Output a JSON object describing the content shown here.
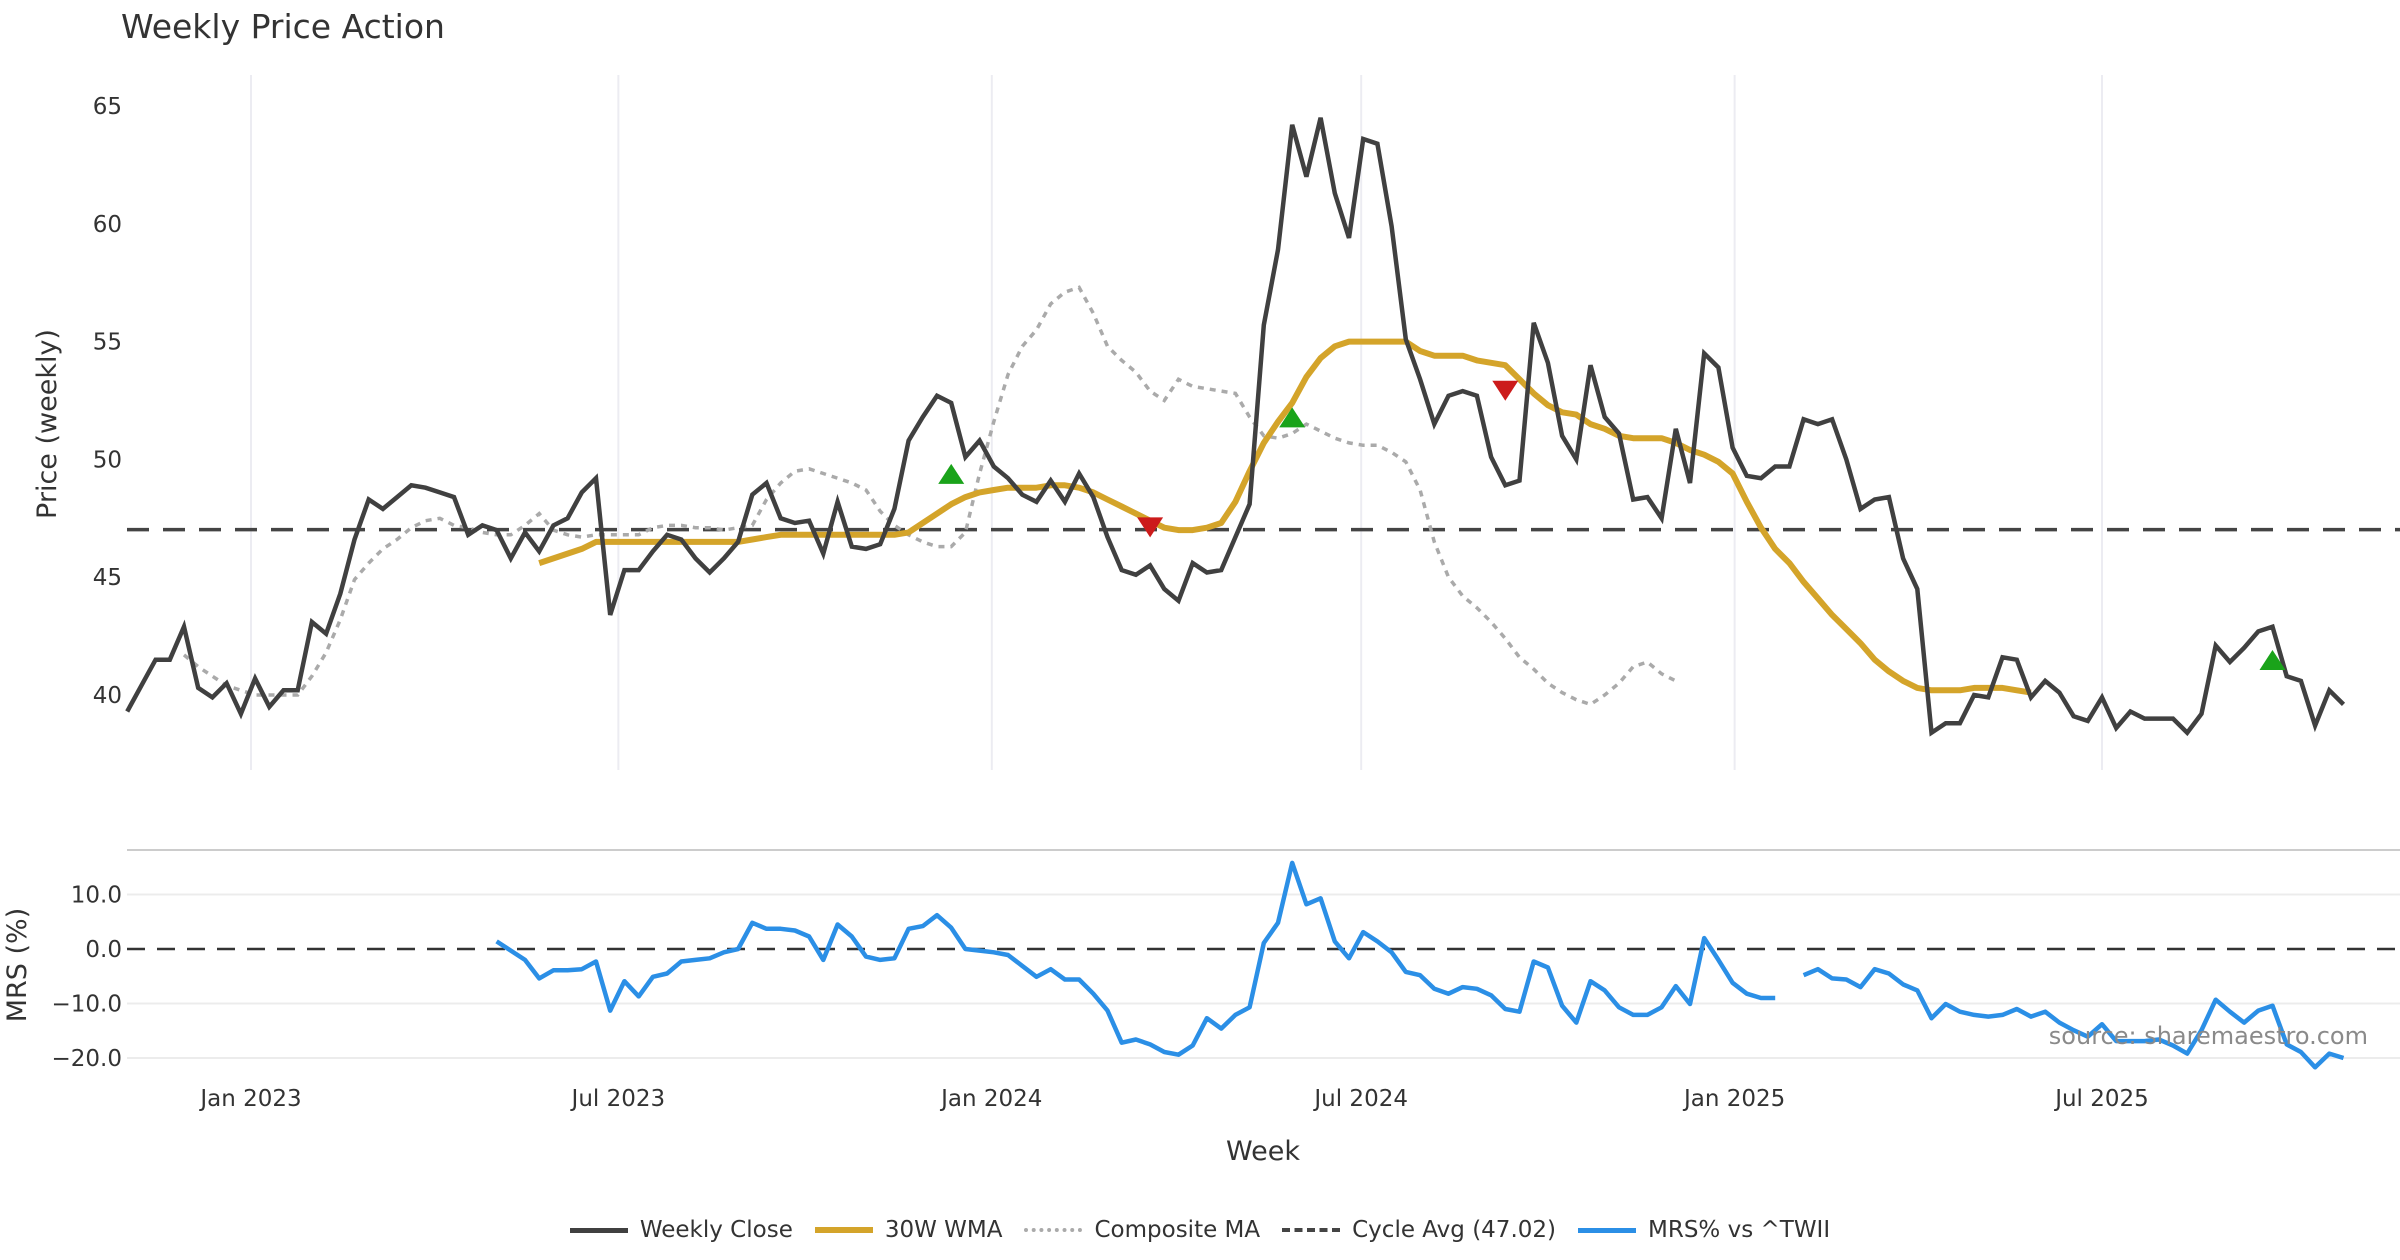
{
  "chart_data": [
    {
      "type": "line",
      "title": "Weekly Price Action",
      "xlabel": "Week",
      "ylabel": "Price (weekly)",
      "ylim": [
        36.5,
        66.5
      ],
      "yticks": [
        "40",
        "45",
        "50",
        "55",
        "60",
        "65"
      ],
      "ytick_values": [
        40,
        45,
        50,
        55,
        60,
        65
      ],
      "xticks": [
        "Jan 2023",
        "Jul 2023",
        "Jan 2024",
        "Jul 2024",
        "Jan 2025",
        "Jul 2025"
      ],
      "xtick_dates": [
        "2023-01-01",
        "2023-07-01",
        "2024-01-01",
        "2024-07-01",
        "2025-01-01",
        "2025-07-01"
      ],
      "x_start": "2022-11-01",
      "x_step_days": 7,
      "grid": true,
      "legend_position": "bottom-center",
      "series": [
        {
          "name": "Weekly Close",
          "color": "#404040",
          "start_index": 0,
          "values": [
            39.3,
            40.4,
            41.5,
            41.5,
            42.9,
            40.3,
            39.9,
            40.5,
            39.2,
            40.7,
            39.5,
            40.2,
            40.2,
            43.1,
            42.6,
            44.3,
            46.6,
            48.3,
            47.9,
            48.4,
            48.9,
            48.8,
            48.6,
            48.4,
            46.8,
            47.2,
            47.0,
            45.8,
            46.9,
            46.1,
            47.2,
            47.5,
            48.6,
            49.2,
            43.4,
            45.3,
            45.3,
            46.1,
            46.8,
            46.6,
            45.8,
            45.2,
            45.8,
            46.5,
            48.5,
            49.0,
            47.5,
            47.3,
            47.4,
            46.0,
            48.2,
            46.3,
            46.2,
            46.4,
            47.9,
            50.8,
            51.8,
            52.7,
            52.4,
            50.1,
            50.8,
            49.7,
            49.2,
            48.5,
            48.2,
            49.1,
            48.2,
            49.4,
            48.4,
            46.7,
            45.3,
            45.1,
            45.5,
            44.5,
            44.0,
            45.6,
            45.2,
            45.3,
            46.7,
            48.1,
            55.7,
            58.9,
            64.2,
            62.0,
            64.5,
            61.3,
            59.4,
            63.6,
            63.4,
            59.9,
            55.1,
            53.4,
            51.5,
            52.7,
            52.9,
            52.7,
            50.1,
            48.9,
            49.1,
            55.8,
            54.1,
            51.0,
            50.0,
            54.0,
            51.8,
            51.1,
            48.3,
            48.4,
            47.5,
            51.3,
            49.0,
            54.5,
            53.9,
            50.5,
            49.3,
            49.2,
            49.7,
            49.7,
            51.7,
            51.5,
            51.7,
            50.0,
            47.9,
            48.3,
            48.4,
            45.8,
            44.5,
            38.4,
            38.8,
            38.8,
            40.0,
            39.9,
            41.6,
            41.5,
            39.9,
            40.6,
            40.1,
            39.1,
            38.9,
            39.9,
            38.6,
            39.3,
            39.0,
            39.0,
            39.0,
            38.4,
            39.2,
            42.1,
            41.4,
            42.0,
            42.7,
            42.9,
            40.8,
            40.6,
            38.7,
            40.2,
            39.6
          ]
        },
        {
          "name": "30W WMA",
          "color": "#D4A42A",
          "start_index": 29,
          "values": [
            45.6,
            45.8,
            46.0,
            46.2,
            46.5,
            46.5,
            46.5,
            46.5,
            46.5,
            46.5,
            46.5,
            46.5,
            46.5,
            46.5,
            46.5,
            46.6,
            46.7,
            46.8,
            46.8,
            46.8,
            46.8,
            46.8,
            46.8,
            46.8,
            46.8,
            46.8,
            46.9,
            47.3,
            47.7,
            48.1,
            48.4,
            48.6,
            48.7,
            48.8,
            48.8,
            48.8,
            48.9,
            48.9,
            48.8,
            48.6,
            48.3,
            48.0,
            47.7,
            47.4,
            47.1,
            47.0,
            47.0,
            47.1,
            47.3,
            48.2,
            49.5,
            50.7,
            51.6,
            52.4,
            53.5,
            54.3,
            54.8,
            55.0,
            55.0,
            55.0,
            55.0,
            55.0,
            54.6,
            54.4,
            54.4,
            54.4,
            54.2,
            54.1,
            54.0,
            53.4,
            52.8,
            52.3,
            52.0,
            51.9,
            51.5,
            51.3,
            51.0,
            50.9,
            50.9,
            50.9,
            50.7,
            50.4,
            50.2,
            49.9,
            49.4,
            48.2,
            47.1,
            46.2,
            45.6,
            44.8,
            44.1,
            43.4,
            42.8,
            42.2,
            41.5,
            41.0,
            40.6,
            40.3,
            40.2,
            40.2,
            40.2,
            40.3,
            40.3,
            40.3,
            40.2,
            40.1
          ]
        },
        {
          "name": "Composite MA",
          "color": "#AAAAAA",
          "start_index": 4,
          "values": [
            41.7,
            41.2,
            40.8,
            40.4,
            40.2,
            40.0,
            40.0,
            40.0,
            40.0,
            40.8,
            41.8,
            43.2,
            44.9,
            45.6,
            46.2,
            46.6,
            47.1,
            47.4,
            47.5,
            47.2,
            47.1,
            46.9,
            46.8,
            46.8,
            47.2,
            47.7,
            47.0,
            46.8,
            46.7,
            46.8,
            46.8,
            46.8,
            46.8,
            47.1,
            47.2,
            47.2,
            47.1,
            47.1,
            47.0,
            47.1,
            47.2,
            48.3,
            49.0,
            49.5,
            49.6,
            49.4,
            49.2,
            49.0,
            48.7,
            47.8,
            47.2,
            46.8,
            46.5,
            46.3,
            46.3,
            46.9,
            49.4,
            51.6,
            53.6,
            54.8,
            55.5,
            56.6,
            57.1,
            57.3,
            56.2,
            54.8,
            54.2,
            53.7,
            52.9,
            52.5,
            53.4,
            53.1,
            53.0,
            52.9,
            52.8,
            51.8,
            51.0,
            50.9,
            51.1,
            51.5,
            51.2,
            50.9,
            50.7,
            50.6,
            50.6,
            50.3,
            49.9,
            48.7,
            46.5,
            45.0,
            44.2,
            43.7,
            43.1,
            42.4,
            41.6,
            41.1,
            40.5,
            40.1,
            39.8,
            39.6,
            40.0,
            40.5,
            41.2,
            41.4,
            40.9,
            40.6
          ]
        },
        {
          "name": "Cycle Avg (47.02)",
          "color": "#444444",
          "value": 47.02
        }
      ],
      "signals": [
        {
          "type": "buy",
          "index": 58,
          "value": 49.3,
          "color": "#1AA31A"
        },
        {
          "type": "sell",
          "index": 72,
          "value": 47.2,
          "color": "#CC1B1B"
        },
        {
          "type": "buy",
          "index": 82,
          "value": 51.7,
          "color": "#1AA31A"
        },
        {
          "type": "sell",
          "index": 97,
          "value": 53.0,
          "color": "#CC1B1B"
        },
        {
          "type": "buy",
          "index": 151,
          "value": 41.4,
          "color": "#1AA31A"
        }
      ]
    },
    {
      "type": "line",
      "title": "",
      "xlabel": "Week",
      "ylabel": "MRS (%)",
      "ylim": [
        -24,
        20
      ],
      "yticks": [
        "−20.0",
        "−10.0",
        "0.0",
        "10.0"
      ],
      "ytick_values": [
        -20,
        -10,
        0,
        10
      ],
      "grid": true,
      "annotation": "source: sharemaestro.com",
      "series": [
        {
          "name": "MRS% vs ^TWII",
          "color": "#2B8FE6",
          "start_index": 26,
          "values": [
            1.4,
            -0.3,
            -2.0,
            -5.4,
            -3.9,
            -3.9,
            -3.7,
            -2.3,
            -11.3,
            -5.9,
            -8.7,
            -5.1,
            -4.5,
            -2.3,
            -2.0,
            -1.7,
            -0.6,
            0.0,
            4.8,
            3.7,
            3.7,
            3.4,
            2.3,
            -2.0,
            4.5,
            2.3,
            -1.4,
            -2.0,
            -1.7,
            3.7,
            4.2,
            6.2,
            3.9,
            0.0,
            -0.3,
            -0.6,
            -1.1,
            -3.1,
            -5.1,
            -3.7,
            -5.6,
            -5.6,
            -8.2,
            -11.3,
            -17.2,
            -16.6,
            -17.5,
            -18.9,
            -19.4,
            -17.7,
            -12.7,
            -14.6,
            -12.1,
            -10.7,
            1.1,
            4.8,
            15.8,
            8.2,
            9.3,
            1.4,
            -1.7,
            3.1,
            1.4,
            -0.6,
            -4.2,
            -4.8,
            -7.3,
            -8.2,
            -7.0,
            -7.3,
            -8.5,
            -11.0,
            -11.5,
            -2.3,
            -3.4,
            -10.4,
            -13.5,
            -5.9,
            -7.6,
            -10.7,
            -12.1,
            -12.1,
            -10.7,
            -6.8,
            -10.1,
            2.0,
            -2.0,
            -6.2,
            -8.2,
            -9.0,
            -9.0,
            null,
            -4.8,
            -3.7,
            -5.4,
            -5.6,
            -7.0,
            -3.7,
            -4.5,
            -6.5,
            -7.6,
            -12.7,
            -10.1,
            -11.5,
            -12.1,
            -12.4,
            -12.1,
            -11.0,
            -12.4,
            -11.5,
            -13.5,
            -14.9,
            -16.1,
            -13.8,
            -16.9,
            -16.9,
            -16.9,
            -16.6,
            -17.7,
            -19.2,
            -14.9,
            -9.3,
            -11.5,
            -13.5,
            -11.3,
            -10.4,
            -17.5,
            -18.9,
            -21.7,
            -19.2,
            -20.0
          ]
        },
        {
          "name": "zero",
          "color": "#333333",
          "value": 0
        }
      ]
    }
  ],
  "legend": [
    {
      "label": "Weekly Close",
      "color": "#404040",
      "style": "solid"
    },
    {
      "label": "30W WMA",
      "color": "#D4A42A",
      "style": "solid"
    },
    {
      "label": "Composite MA",
      "color": "#AAAAAA",
      "style": "dotted"
    },
    {
      "label": "Cycle Avg (47.02)",
      "color": "#444444",
      "style": "dashed"
    },
    {
      "label": "MRS% vs ^TWII",
      "color": "#2B8FE6",
      "style": "solid"
    }
  ]
}
